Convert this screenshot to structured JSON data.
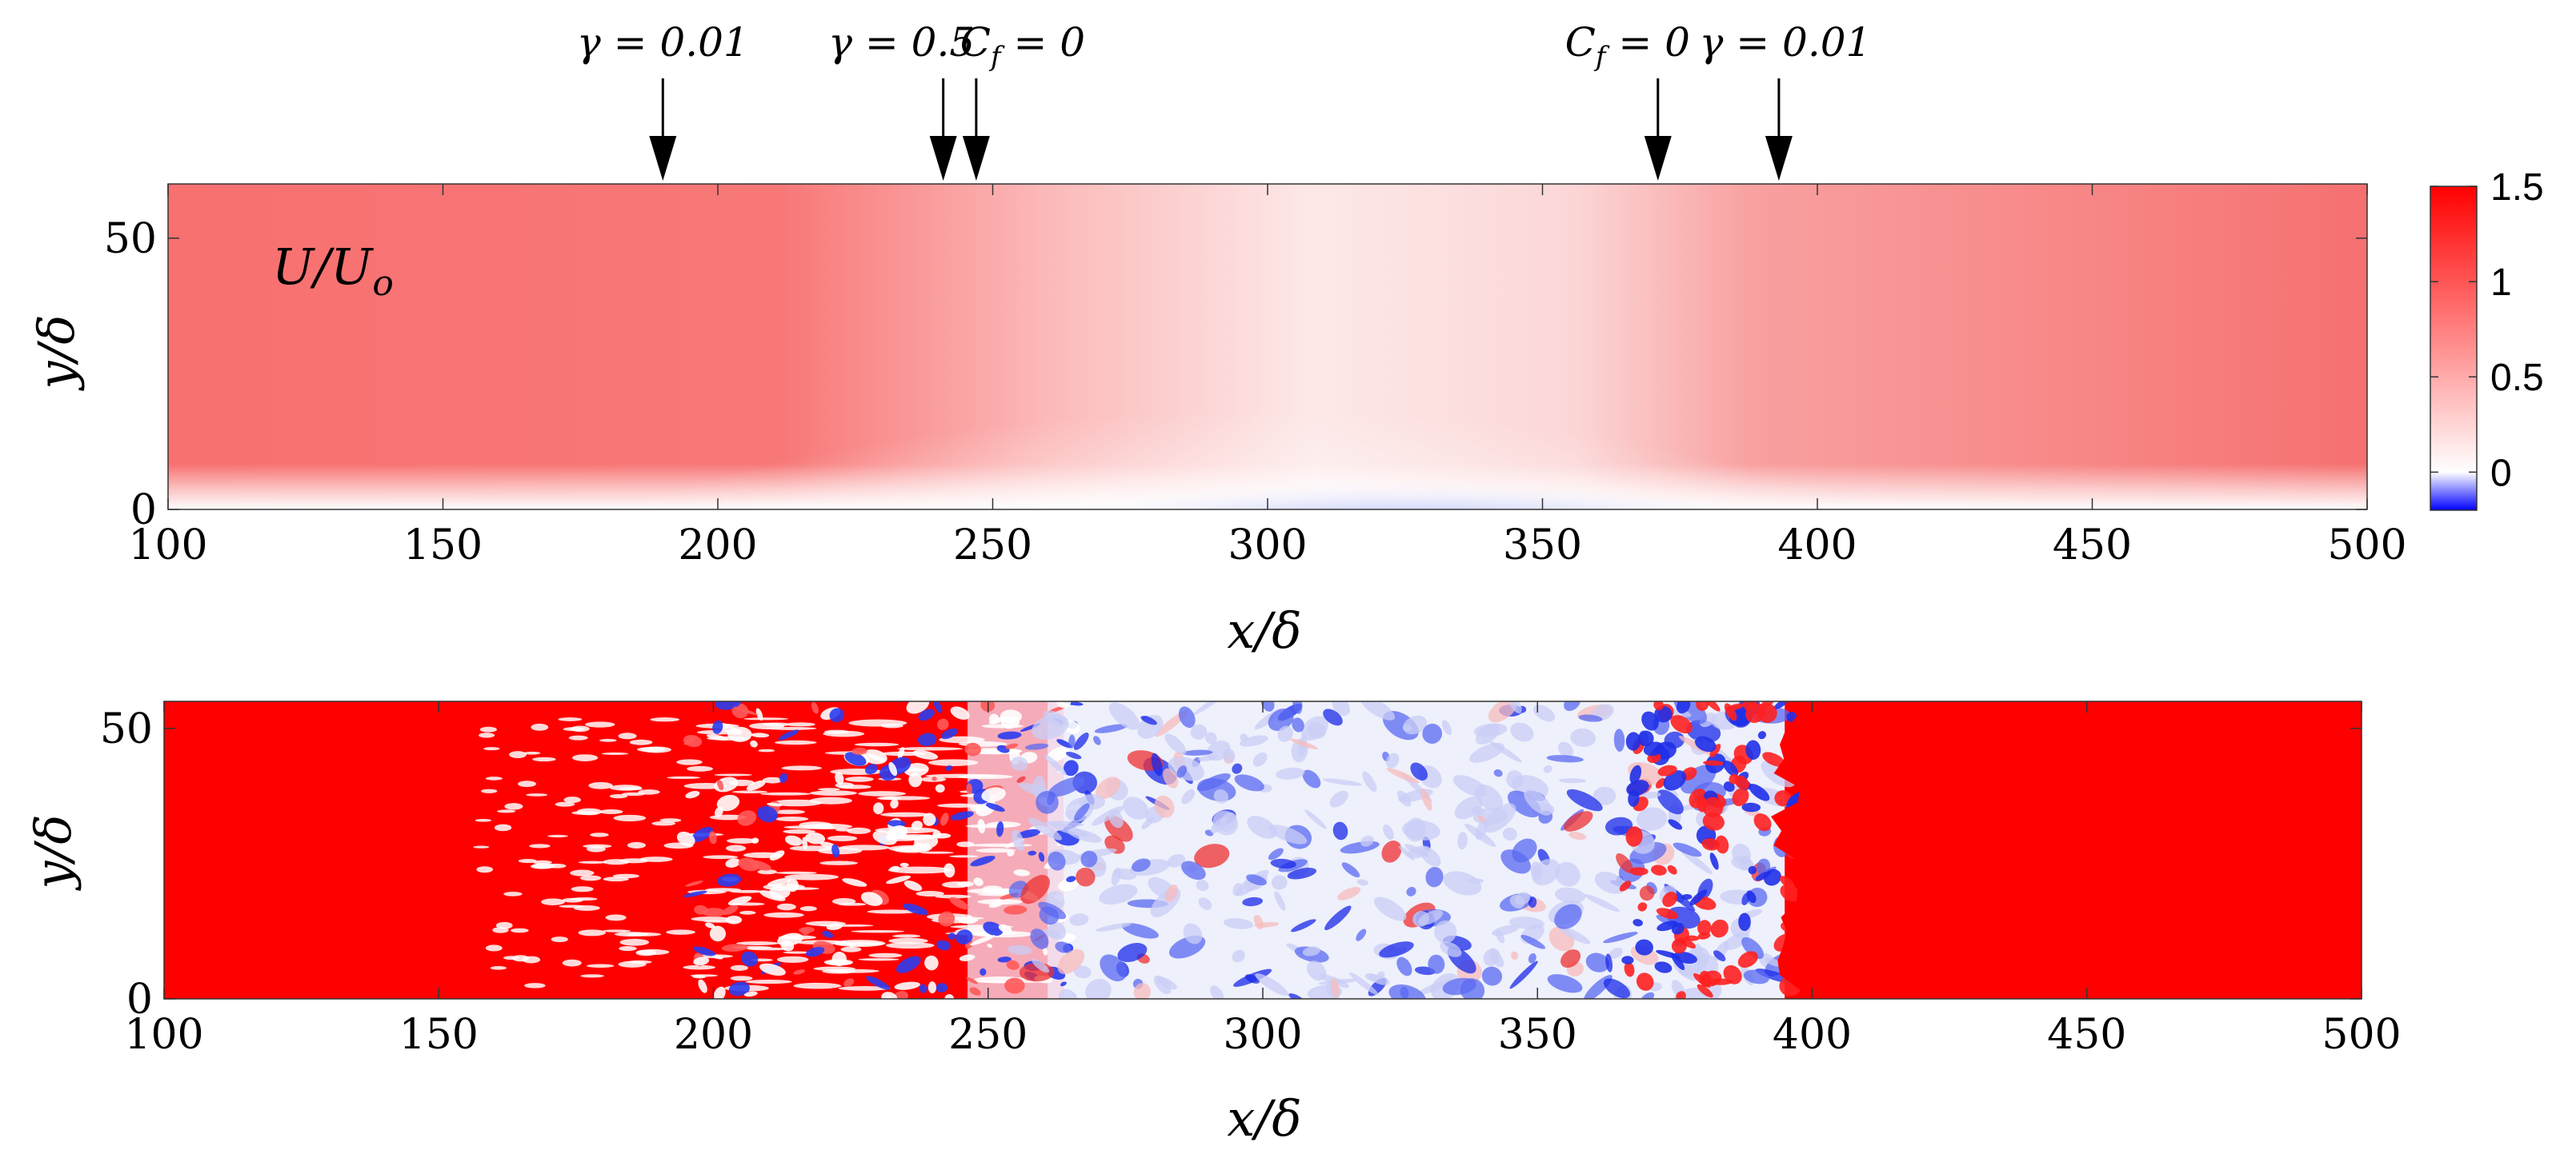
{
  "chart_data": [
    {
      "type": "heatmap",
      "panel": "top",
      "field_label": "U/U",
      "field_label_sub": "o",
      "xlabel": "x/δ",
      "ylabel": "y/δ",
      "xlim": [
        100,
        500
      ],
      "ylim": [
        0,
        60
      ],
      "xticks": [
        100,
        150,
        200,
        250,
        300,
        350,
        400,
        450,
        500
      ],
      "yticks": [
        0,
        50
      ],
      "colorbar": {
        "range": [
          -0.2,
          1.5
        ],
        "ticks": [
          0,
          0.5,
          1,
          1.5
        ],
        "tick_labels": [
          "0",
          "0.5",
          "1",
          "1.5"
        ],
        "colors": {
          "low": "#0000ff",
          "zero": "#ffffff",
          "high": "#ff0000"
        }
      },
      "annotations": [
        {
          "name": "gamma-001-left",
          "label": "γ = 0.01",
          "x": 190
        },
        {
          "name": "gamma-05",
          "label": "γ = 0.5",
          "x": 241
        },
        {
          "name": "cf0-left",
          "label": "C",
          "sub": "f",
          "suffix": " = 0",
          "x": 247
        },
        {
          "name": "cf0-right",
          "label": "C",
          "sub": "f",
          "suffix": " = 0",
          "x": 371
        },
        {
          "name": "gamma-001-right",
          "label": "γ = 0.01",
          "x": 393
        }
      ],
      "field_description": {
        "freestream_left": 1.15,
        "freestream_right": 1.15,
        "separation_bubble_x": [
          265,
          370
        ],
        "separation_bubble_min": -0.2
      }
    },
    {
      "type": "heatmap",
      "panel": "bottom",
      "xlabel": "x/δ",
      "ylabel": "y/δ",
      "xlim": [
        100,
        500
      ],
      "ylim": [
        0,
        55
      ],
      "xticks": [
        100,
        150,
        200,
        250,
        300,
        350,
        400,
        450,
        500
      ],
      "yticks": [
        0,
        50
      ],
      "colors": {
        "positive": "#ff0000",
        "negative": "#0000ff",
        "neutral": "#ffffff"
      },
      "field_description": {
        "laminar_left_end": 195,
        "transitional_x": [
          195,
          255
        ],
        "turbulent_x": [
          255,
          395
        ],
        "laminar_right_start": 395
      }
    }
  ]
}
